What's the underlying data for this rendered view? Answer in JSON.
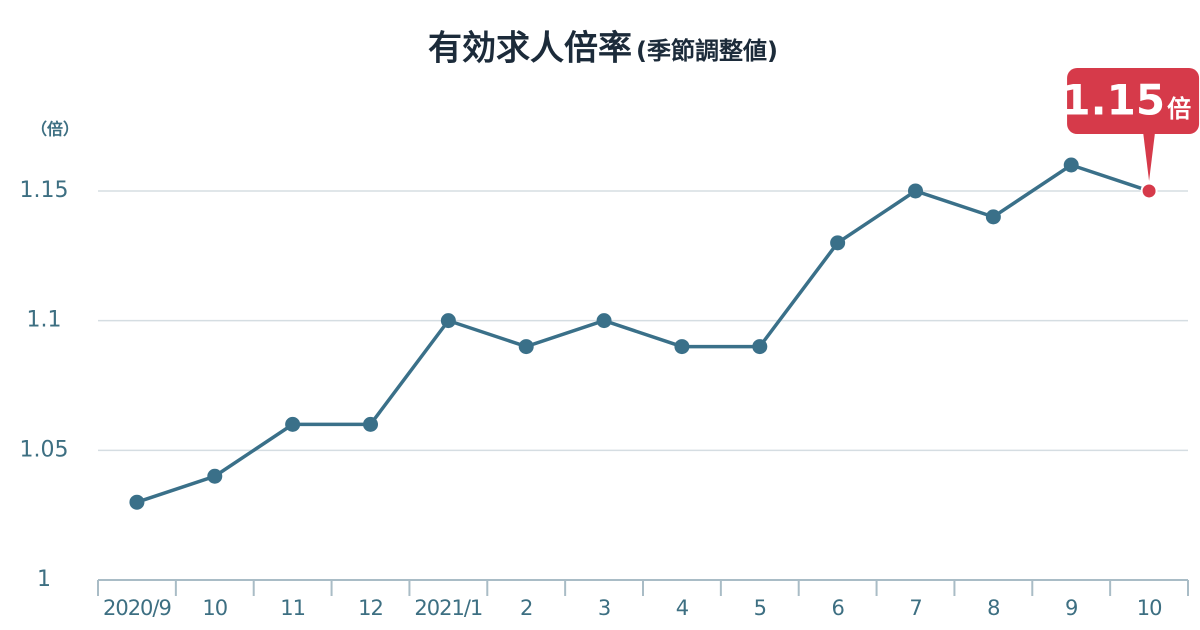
{
  "chart_data": {
    "type": "line",
    "title": "有効求人倍率",
    "subtitle": "(季節調整値)",
    "y_unit": "（倍）",
    "categories": [
      "2020/9",
      "10",
      "11",
      "12",
      "2021/1",
      "2",
      "3",
      "4",
      "5",
      "6",
      "7",
      "8",
      "9",
      "10"
    ],
    "series": [
      {
        "name": "有効求人倍率",
        "color": "#3a7089",
        "values": [
          1.03,
          1.04,
          1.06,
          1.06,
          1.1,
          1.09,
          1.1,
          1.09,
          1.09,
          1.13,
          1.15,
          1.14,
          1.16,
          1.15
        ]
      }
    ],
    "highlight_color": "#d63a4a",
    "callout_unit": "倍",
    "ylim": [
      1,
      1.16
    ],
    "yticks": [
      1,
      1.05,
      1.1,
      1.15
    ],
    "grid": true
  }
}
